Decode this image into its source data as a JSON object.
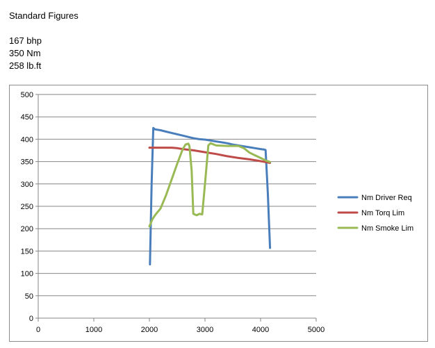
{
  "header": {
    "title": "Standard Figures",
    "specs": [
      "167 bhp",
      "350 Nm",
      "258 lb.ft"
    ]
  },
  "chart_data": {
    "type": "line",
    "title": "",
    "xlabel": "",
    "ylabel": "",
    "xlim": [
      0,
      5000
    ],
    "ylim": [
      0,
      500
    ],
    "x_ticks": [
      0,
      1000,
      2000,
      3000,
      4000,
      5000
    ],
    "y_ticks": [
      0,
      50,
      100,
      150,
      200,
      250,
      300,
      350,
      400,
      450,
      500
    ],
    "grid": true,
    "legend_position": "right",
    "series": [
      {
        "name": "Nm Driver Req",
        "color": "#4a7ebb",
        "points": [
          [
            2010,
            120
          ],
          [
            2040,
            300
          ],
          [
            2070,
            425
          ],
          [
            2100,
            422
          ],
          [
            2200,
            420
          ],
          [
            2300,
            417
          ],
          [
            2400,
            414
          ],
          [
            2500,
            411
          ],
          [
            2600,
            408
          ],
          [
            2700,
            405
          ],
          [
            2800,
            402
          ],
          [
            2900,
            400
          ],
          [
            3000,
            399
          ],
          [
            3100,
            397
          ],
          [
            3200,
            395
          ],
          [
            3300,
            393
          ],
          [
            3400,
            391
          ],
          [
            3500,
            388
          ],
          [
            3600,
            386
          ],
          [
            3700,
            384
          ],
          [
            3800,
            382
          ],
          [
            3900,
            380
          ],
          [
            4000,
            378
          ],
          [
            4060,
            377
          ],
          [
            4090,
            376
          ],
          [
            4130,
            280
          ],
          [
            4170,
            157
          ]
        ]
      },
      {
        "name": "Nm Torq Lim",
        "color": "#be4b48",
        "points": [
          [
            2000,
            381
          ],
          [
            2200,
            381
          ],
          [
            2400,
            381
          ],
          [
            2500,
            380
          ],
          [
            2600,
            378
          ],
          [
            2800,
            375
          ],
          [
            3000,
            371
          ],
          [
            3200,
            367
          ],
          [
            3400,
            362
          ],
          [
            3600,
            358
          ],
          [
            3800,
            355
          ],
          [
            4000,
            351
          ],
          [
            4170,
            347
          ]
        ]
      },
      {
        "name": "Nm Smoke Lim",
        "color": "#98b954",
        "points": [
          [
            2000,
            205
          ],
          [
            2050,
            220
          ],
          [
            2100,
            230
          ],
          [
            2200,
            245
          ],
          [
            2300,
            275
          ],
          [
            2400,
            310
          ],
          [
            2500,
            345
          ],
          [
            2600,
            378
          ],
          [
            2650,
            388
          ],
          [
            2700,
            390
          ],
          [
            2720,
            385
          ],
          [
            2760,
            330
          ],
          [
            2790,
            233
          ],
          [
            2850,
            230
          ],
          [
            2900,
            233
          ],
          [
            2950,
            232
          ],
          [
            3000,
            300
          ],
          [
            3060,
            386
          ],
          [
            3100,
            391
          ],
          [
            3200,
            386
          ],
          [
            3400,
            385
          ],
          [
            3600,
            385
          ],
          [
            3700,
            380
          ],
          [
            3800,
            370
          ],
          [
            3900,
            364
          ],
          [
            4000,
            358
          ],
          [
            4100,
            352
          ],
          [
            4170,
            349
          ]
        ]
      }
    ]
  }
}
